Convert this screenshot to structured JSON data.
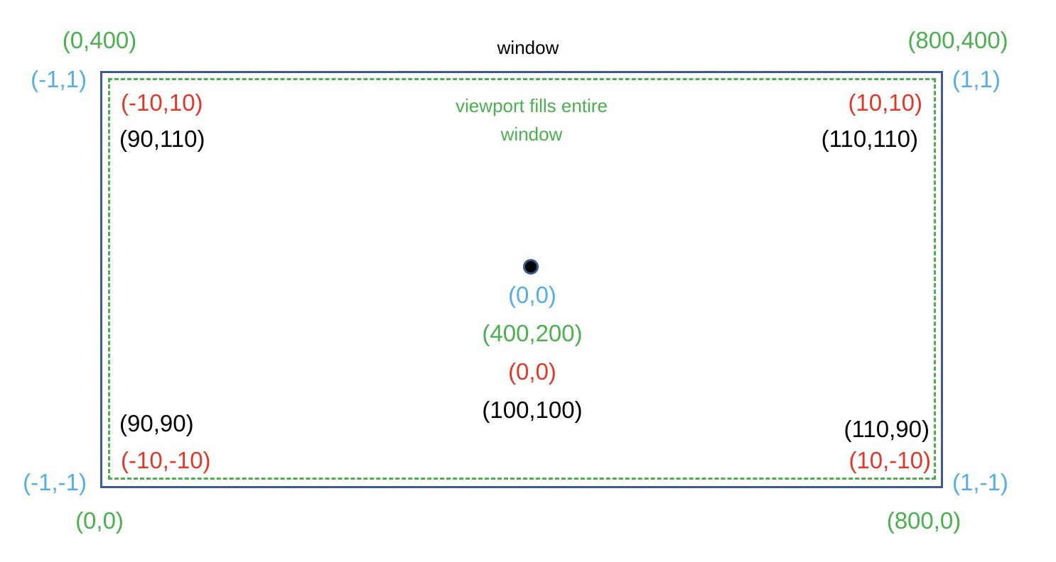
{
  "colors": {
    "ndc": "#56aee3",
    "screen": "#4caf50",
    "world": "#e0382b",
    "model": "#000000",
    "window_border": "#3e5a8e"
  },
  "title": "window",
  "viewport_caption": [
    "viewport fills entire",
    "window"
  ],
  "labels": {
    "screen_top_left": "(0,400)",
    "screen_top_right": "(800,400)",
    "screen_bottom_left": "(0,0)",
    "screen_bottom_right": "(800,0)",
    "screen_center": "(400,200)",
    "ndc_top_left": "(-1,1)",
    "ndc_top_right": "(1,1)",
    "ndc_bottom_left": "(-1,-1)",
    "ndc_bottom_right": "(1,-1)",
    "ndc_center": "(0,0)",
    "world_top_left": "(-10,10)",
    "world_top_right": "(10,10)",
    "world_bottom_left": "(-10,-10)",
    "world_bottom_right": "(10,-10)",
    "world_center": "(0,0)",
    "model_top_left": "(90,110)",
    "model_top_right": "(110,110)",
    "model_bottom_left": "(90,90)",
    "model_bottom_right": "(110,90)",
    "model_center": "(100,100)"
  }
}
